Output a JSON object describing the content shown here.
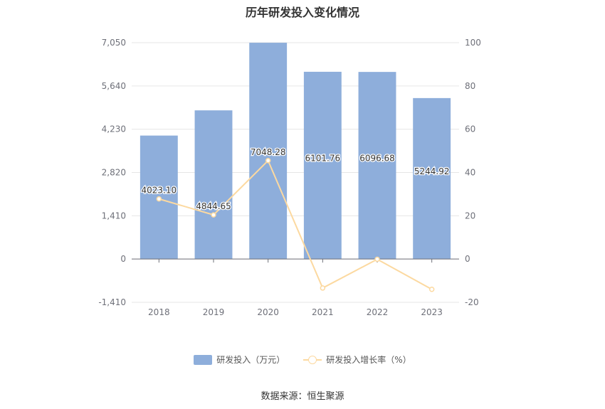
{
  "chart_data": {
    "type": "bar",
    "title": "历年研发投入变化情况",
    "categories": [
      "2018",
      "2019",
      "2020",
      "2021",
      "2022",
      "2023"
    ],
    "series": [
      {
        "name": "研发投入（万元）",
        "type": "bar",
        "axis": "left",
        "values": [
          4023.1,
          4844.65,
          7048.28,
          6101.76,
          6096.68,
          5244.92
        ],
        "labels": [
          "4023.10",
          "4844.65",
          "7048.28",
          "6101.76",
          "6096.68",
          "5244.92"
        ],
        "color": "#8eaedb"
      },
      {
        "name": "研发投入增长率（%）",
        "type": "line",
        "axis": "right",
        "values": [
          27.8,
          20.4,
          45.5,
          -13.4,
          -0.1,
          -14.0
        ],
        "color": "#fcd9a0"
      }
    ],
    "y_left": {
      "min": -1410,
      "max": 7050,
      "ticks": [
        -1410,
        0,
        1410,
        2820,
        4230,
        5640,
        7050
      ],
      "tick_labels": [
        "-1,410",
        "0",
        "1,410",
        "2,820",
        "4,230",
        "5,640",
        "7,050"
      ]
    },
    "y_right": {
      "min": -20,
      "max": 100,
      "ticks": [
        -20,
        0,
        20,
        40,
        60,
        80,
        100
      ],
      "tick_labels": [
        "-20",
        "0",
        "20",
        "40",
        "60",
        "80",
        "100"
      ]
    },
    "grid": true,
    "legend_position": "bottom"
  },
  "source": "数据来源：恒生聚源"
}
